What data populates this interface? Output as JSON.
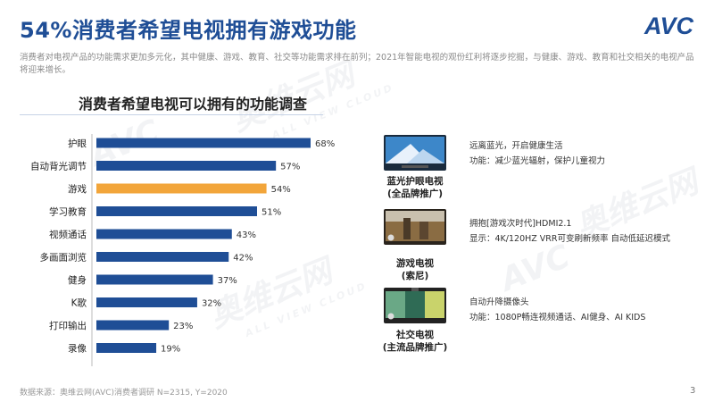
{
  "header": {
    "title": "54%消费者希望电视拥有游戏功能",
    "subtitle": "消费者对电视产品的功能需求更加多元化，其中健康、游戏、教育、社交等功能需求排在前列；2021年智能电视的观份红利将逐步挖掘，与健康、游戏、教育和社交相关的电视产品将迎来增长。",
    "logo_text": "AVC"
  },
  "watermark": {
    "brand": "奥维云网",
    "sub": "ALL VIEW CLOUD"
  },
  "chart_data": {
    "type": "bar",
    "orientation": "horizontal",
    "title": "消费者希望电视可以拥有的功能调查",
    "categories": [
      "护眼",
      "自动背光调节",
      "游戏",
      "学习教育",
      "视频通话",
      "多画面浏览",
      "健身",
      "K歌",
      "打印输出",
      "录像"
    ],
    "values": [
      68,
      57,
      54,
      51,
      43,
      42,
      37,
      32,
      23,
      19
    ],
    "value_labels": [
      "68%",
      "57%",
      "54%",
      "51%",
      "43%",
      "42%",
      "37%",
      "32%",
      "23%",
      "19%"
    ],
    "highlight": "游戏",
    "colors": {
      "default": "#1f4e96",
      "highlight": "#f2a53a"
    },
    "xlim": [
      0,
      100
    ],
    "grid": false,
    "legend": "none"
  },
  "products": [
    {
      "name_line1": "蓝光护眼电视",
      "name_line2": "(全品牌推广)",
      "desc_line1": "远离蓝光，开启健康生活",
      "desc_line2": "功能：减少蓝光辐射，保护儿童视力"
    },
    {
      "name_line1": "游戏电视",
      "name_line2": "(索尼)",
      "desc_line1": "拥抱[游戏次时代]HDMI2.1",
      "desc_line2": "显示：4K/120HZ   VRR可变刷新频率   自动低延迟模式"
    },
    {
      "name_line1": "社交电视",
      "name_line2": "(主流品牌推广)",
      "desc_line1": "自动升降摄像头",
      "desc_line2": "功能：1080P畅连视频通话、AI健身、AI KIDS"
    }
  ],
  "footer": {
    "source": "数据来源：奥维云网(AVC)消费者调研   N=2315, Y=2020",
    "page": "3"
  }
}
